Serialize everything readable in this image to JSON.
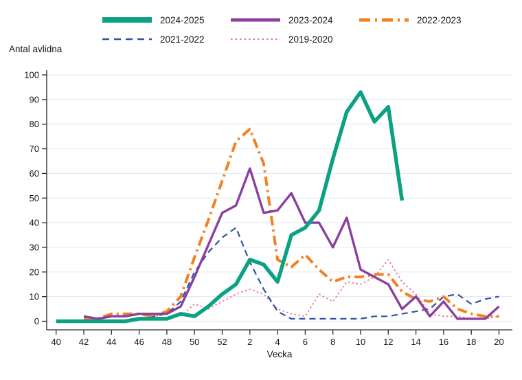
{
  "ylabel": "Antal avlidna",
  "xlabel": "Vecka",
  "legend_rows": [
    [
      "2024-2025",
      "2023-2024",
      "2022-2023"
    ],
    [
      "2021-2022",
      "2019-2020"
    ]
  ],
  "chart_data": {
    "type": "line",
    "title": "",
    "ylabel": "Antal avlidna",
    "xlabel": "Vecka",
    "ylim": [
      0,
      100
    ],
    "yticks": [
      0,
      10,
      20,
      30,
      40,
      50,
      60,
      70,
      80,
      90,
      100
    ],
    "grid": "horizontal-light",
    "legend_position": "top",
    "x_categories": [
      "40",
      "41",
      "42",
      "43",
      "44",
      "45",
      "46",
      "47",
      "48",
      "49",
      "50",
      "51",
      "52",
      "1",
      "2",
      "3",
      "4",
      "5",
      "6",
      "7",
      "8",
      "9",
      "10",
      "11",
      "12",
      "13",
      "14",
      "15",
      "16",
      "17",
      "18",
      "19",
      "20"
    ],
    "x_tick_labels": [
      "40",
      "42",
      "44",
      "46",
      "48",
      "50",
      "52",
      "2",
      "4",
      "6",
      "8",
      "10",
      "12",
      "14",
      "16",
      "18",
      "20"
    ],
    "series": [
      {
        "name": "2024-2025",
        "color": "#0da183",
        "style": "solid-thick",
        "values": [
          0,
          0,
          0,
          0,
          0,
          0,
          1,
          1,
          1,
          3,
          2,
          6,
          11,
          15,
          25,
          23,
          16,
          35,
          38,
          45,
          66,
          85,
          93,
          81,
          87,
          49,
          null,
          null,
          null,
          null,
          null,
          null,
          null
        ]
      },
      {
        "name": "2023-2024",
        "color": "#8a3fa0",
        "style": "solid",
        "values": [
          null,
          null,
          2,
          1,
          2,
          2,
          3,
          3,
          3,
          6,
          18,
          31,
          44,
          47,
          62,
          44,
          45,
          52,
          40,
          40,
          30,
          42,
          21,
          18,
          15,
          5,
          10,
          2,
          8,
          1,
          1,
          1,
          6
        ]
      },
      {
        "name": "2022-2023",
        "color": "#f5801e",
        "style": "dashdot",
        "values": [
          null,
          null,
          1,
          1,
          3,
          3,
          3,
          2,
          4,
          10,
          26,
          41,
          57,
          73,
          78,
          64,
          25,
          22,
          27,
          21,
          16,
          18,
          18,
          19,
          19,
          12,
          9,
          8,
          10,
          5,
          3,
          2,
          2
        ]
      },
      {
        "name": "2021-2022",
        "color": "#2f55a4",
        "style": "dashed",
        "values": [
          null,
          null,
          null,
          null,
          null,
          null,
          1,
          2,
          3,
          8,
          20,
          28,
          34,
          38,
          24,
          13,
          4,
          1,
          1,
          1,
          1,
          1,
          1,
          2,
          2,
          3,
          4,
          5,
          10,
          11,
          7,
          9,
          10
        ]
      },
      {
        "name": "2019-2020",
        "color": "#f06eac",
        "style": "dotted",
        "values": [
          null,
          null,
          null,
          null,
          null,
          null,
          null,
          null,
          null,
          2,
          7,
          5,
          8,
          11,
          13,
          11,
          5,
          3,
          2,
          11,
          8,
          16,
          15,
          18,
          25,
          16,
          11,
          3,
          2,
          2,
          1,
          1,
          2
        ]
      }
    ]
  },
  "colors": {
    "grid": "#e4edf2",
    "axis": "#2a2a2a",
    "text": "#141414"
  }
}
